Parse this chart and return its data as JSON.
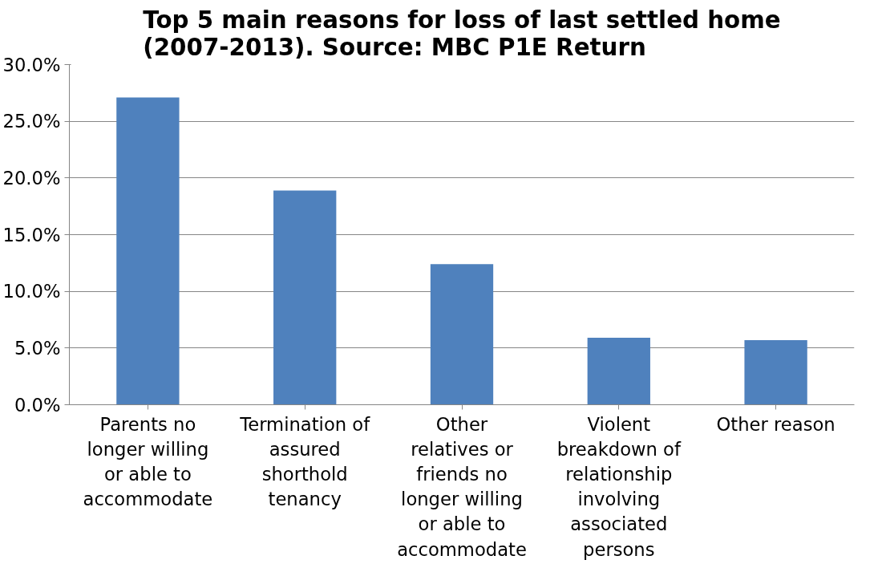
{
  "chart_data": {
    "type": "bar",
    "title": "Top 5 main reasons for loss of last settled home\n(2007-2013). Source: MBC P1E Return",
    "categories": [
      "Parents no longer willing or able to accommodate",
      "Termination of assured shorthold tenancy",
      "Other relatives or friends no longer willing or able to accommodate",
      "Violent breakdown of relationship involving associated persons",
      "Other reason"
    ],
    "values": [
      27.1,
      18.9,
      12.4,
      5.9,
      5.7
    ],
    "color": "#4f81bd",
    "ylim": [
      0,
      30
    ],
    "yticks": [
      {
        "value": 0,
        "label": "0.0%"
      },
      {
        "value": 5,
        "label": "5.0%"
      },
      {
        "value": 10,
        "label": "10.0%"
      },
      {
        "value": 15,
        "label": "15.0%"
      },
      {
        "value": 20,
        "label": "20.0%"
      },
      {
        "value": 25,
        "label": "25.0%"
      },
      {
        "value": 30,
        "label": "30.0%"
      }
    ],
    "grid": "y"
  }
}
